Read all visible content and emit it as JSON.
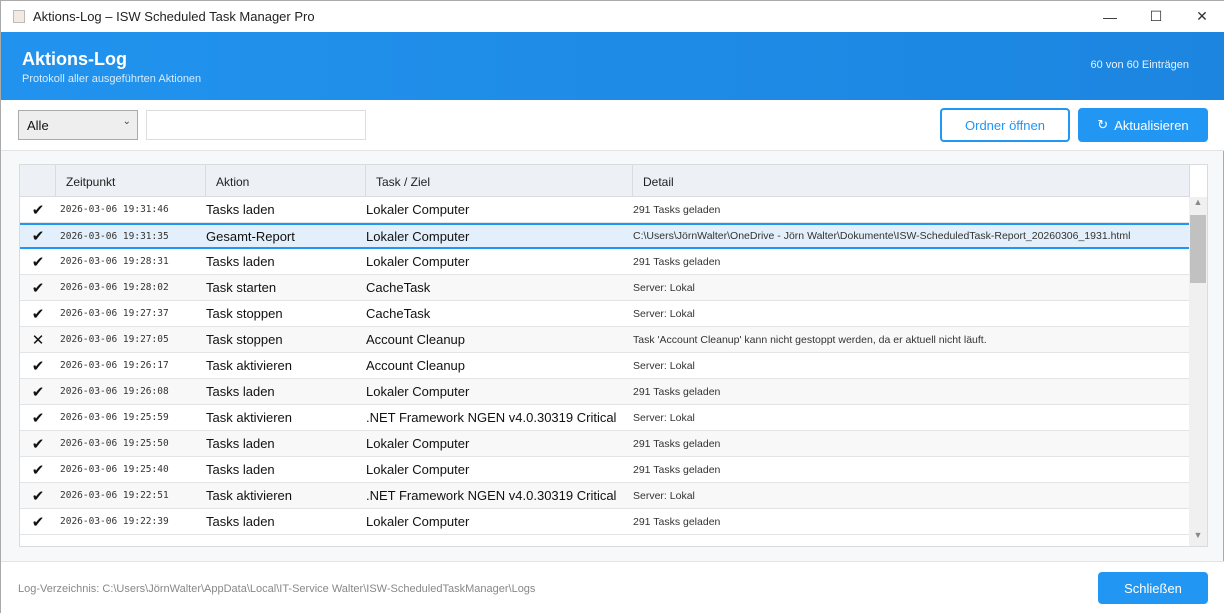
{
  "window": {
    "title": "Aktions-Log – ISW Scheduled Task Manager Pro",
    "minimize": "—",
    "maximize": "☐",
    "close": "✕"
  },
  "header": {
    "title": "Aktions-Log",
    "subtitle": "Protokoll aller ausgeführten Aktionen",
    "count": "60 von 60 Einträgen"
  },
  "toolbar": {
    "filter_value": "Alle",
    "search_value": "",
    "open_folder": "Ordner öffnen",
    "refresh": "Aktualisieren",
    "refresh_icon": "↻"
  },
  "table": {
    "columns": [
      "",
      "Zeitpunkt",
      "Aktion",
      "Task / Ziel",
      "Detail"
    ],
    "selected_index": 1,
    "rows": [
      {
        "status": "✔",
        "time": "2026-03-06 19:31:46",
        "action": "Tasks laden",
        "target": "Lokaler Computer",
        "detail": "291 Tasks geladen"
      },
      {
        "status": "✔",
        "time": "2026-03-06 19:31:35",
        "action": "Gesamt-Report",
        "target": "Lokaler Computer",
        "detail": "C:\\Users\\JörnWalter\\OneDrive - Jörn Walter\\Dokumente\\ISW-ScheduledTask-Report_20260306_1931.html"
      },
      {
        "status": "✔",
        "time": "2026-03-06 19:28:31",
        "action": "Tasks laden",
        "target": "Lokaler Computer",
        "detail": "291 Tasks geladen"
      },
      {
        "status": "✔",
        "time": "2026-03-06 19:28:02",
        "action": "Task starten",
        "target": "CacheTask",
        "detail": "Server: Lokal"
      },
      {
        "status": "✔",
        "time": "2026-03-06 19:27:37",
        "action": "Task stoppen",
        "target": "CacheTask",
        "detail": "Server: Lokal"
      },
      {
        "status": "✕",
        "time": "2026-03-06 19:27:05",
        "action": "Task stoppen",
        "target": "Account Cleanup",
        "detail": "Task 'Account Cleanup' kann nicht gestoppt werden, da er aktuell nicht läuft."
      },
      {
        "status": "✔",
        "time": "2026-03-06 19:26:17",
        "action": "Task aktivieren",
        "target": "Account Cleanup",
        "detail": "Server: Lokal"
      },
      {
        "status": "✔",
        "time": "2026-03-06 19:26:08",
        "action": "Tasks laden",
        "target": "Lokaler Computer",
        "detail": "291 Tasks geladen"
      },
      {
        "status": "✔",
        "time": "2026-03-06 19:25:59",
        "action": "Task aktivieren",
        "target": ".NET Framework NGEN v4.0.30319 Critical",
        "detail": "Server: Lokal"
      },
      {
        "status": "✔",
        "time": "2026-03-06 19:25:50",
        "action": "Tasks laden",
        "target": "Lokaler Computer",
        "detail": "291 Tasks geladen"
      },
      {
        "status": "✔",
        "time": "2026-03-06 19:25:40",
        "action": "Tasks laden",
        "target": "Lokaler Computer",
        "detail": "291 Tasks geladen"
      },
      {
        "status": "✔",
        "time": "2026-03-06 19:22:51",
        "action": "Task aktivieren",
        "target": ".NET Framework NGEN v4.0.30319 Critical",
        "detail": "Server: Lokal"
      },
      {
        "status": "✔",
        "time": "2026-03-06 19:22:39",
        "action": "Tasks laden",
        "target": "Lokaler Computer",
        "detail": "291 Tasks geladen"
      }
    ]
  },
  "footer": {
    "log_path": "Log-Verzeichnis: C:\\Users\\JörnWalter\\AppData\\Local\\IT-Service Walter\\ISW-ScheduledTaskManager\\Logs",
    "close": "Schließen"
  }
}
